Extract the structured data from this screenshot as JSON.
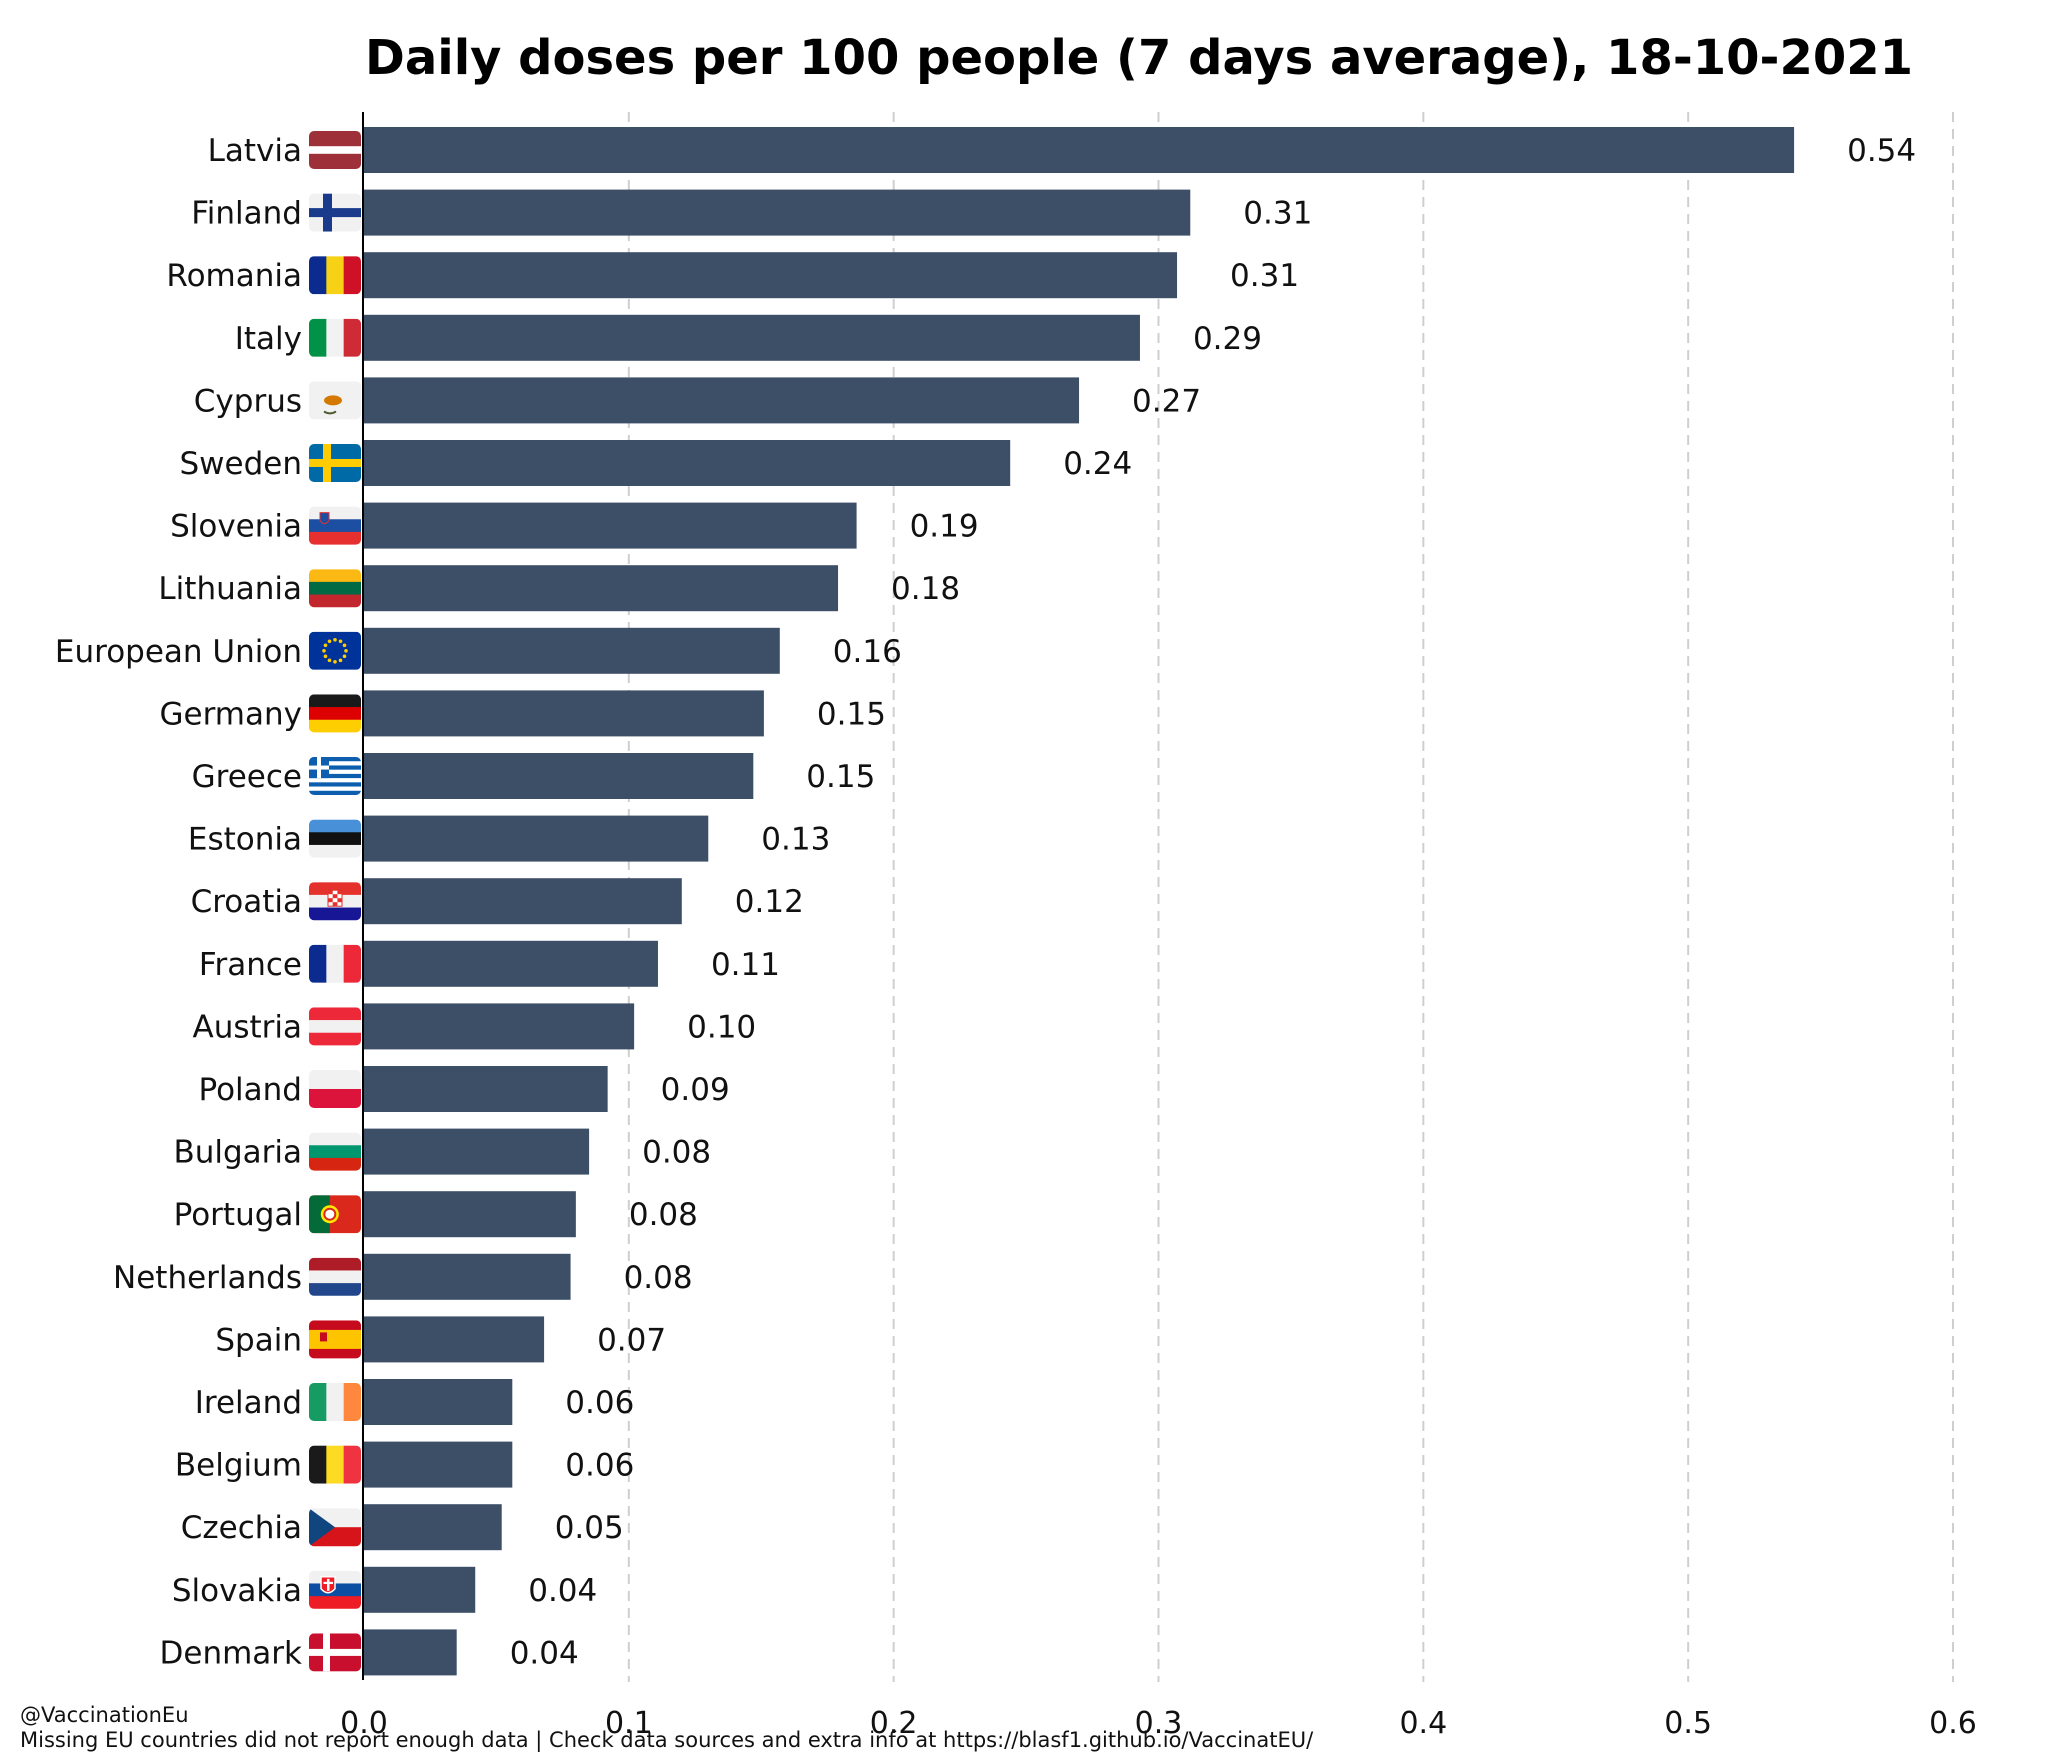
{
  "chart_data": {
    "type": "bar",
    "orientation": "horizontal",
    "title": "Daily doses per 100 people (7 days average), 18-10-2021",
    "xlabel": "",
    "ylabel": "",
    "xlim": [
      0,
      0.6
    ],
    "x_ticks": [
      "0.0",
      "0.1",
      "0.2",
      "0.3",
      "0.4",
      "0.5",
      "0.6"
    ],
    "grid": "vertical dashed",
    "bar_color": "#3d4f67",
    "categories": [
      "Latvia",
      "Finland",
      "Romania",
      "Italy",
      "Cyprus",
      "Sweden",
      "Slovenia",
      "Lithuania",
      "European Union",
      "Germany",
      "Greece",
      "Estonia",
      "Croatia",
      "France",
      "Austria",
      "Poland",
      "Bulgaria",
      "Portugal",
      "Netherlands",
      "Spain",
      "Ireland",
      "Belgium",
      "Czechia",
      "Slovakia",
      "Denmark"
    ],
    "values": [
      0.54,
      0.312,
      0.307,
      0.293,
      0.27,
      0.244,
      0.186,
      0.179,
      0.157,
      0.151,
      0.147,
      0.13,
      0.12,
      0.111,
      0.102,
      0.092,
      0.085,
      0.08,
      0.078,
      0.068,
      0.056,
      0.056,
      0.052,
      0.042,
      0.035
    ],
    "labels": [
      "0.54",
      "0.31",
      "0.31",
      "0.29",
      "0.27",
      "0.24",
      "0.19",
      "0.18",
      "0.16",
      "0.15",
      "0.15",
      "0.13",
      "0.12",
      "0.11",
      "0.10",
      "0.09",
      "0.08",
      "0.08",
      "0.08",
      "0.07",
      "0.06",
      "0.06",
      "0.05",
      "0.04",
      "0.04"
    ],
    "flag_icons": [
      "latvia-flag-icon",
      "finland-flag-icon",
      "romania-flag-icon",
      "italy-flag-icon",
      "cyprus-flag-icon",
      "sweden-flag-icon",
      "slovenia-flag-icon",
      "lithuania-flag-icon",
      "european-union-flag-icon",
      "germany-flag-icon",
      "greece-flag-icon",
      "estonia-flag-icon",
      "croatia-flag-icon",
      "france-flag-icon",
      "austria-flag-icon",
      "poland-flag-icon",
      "bulgaria-flag-icon",
      "portugal-flag-icon",
      "netherlands-flag-icon",
      "spain-flag-icon",
      "ireland-flag-icon",
      "belgium-flag-icon",
      "czechia-flag-icon",
      "slovakia-flag-icon",
      "denmark-flag-icon"
    ]
  },
  "footer": {
    "handle": "@VaccinationEu",
    "note": "Missing EU countries did not report enough data | Check data sources and extra info at https://blasf1.github.io/VaccinatEU/"
  }
}
